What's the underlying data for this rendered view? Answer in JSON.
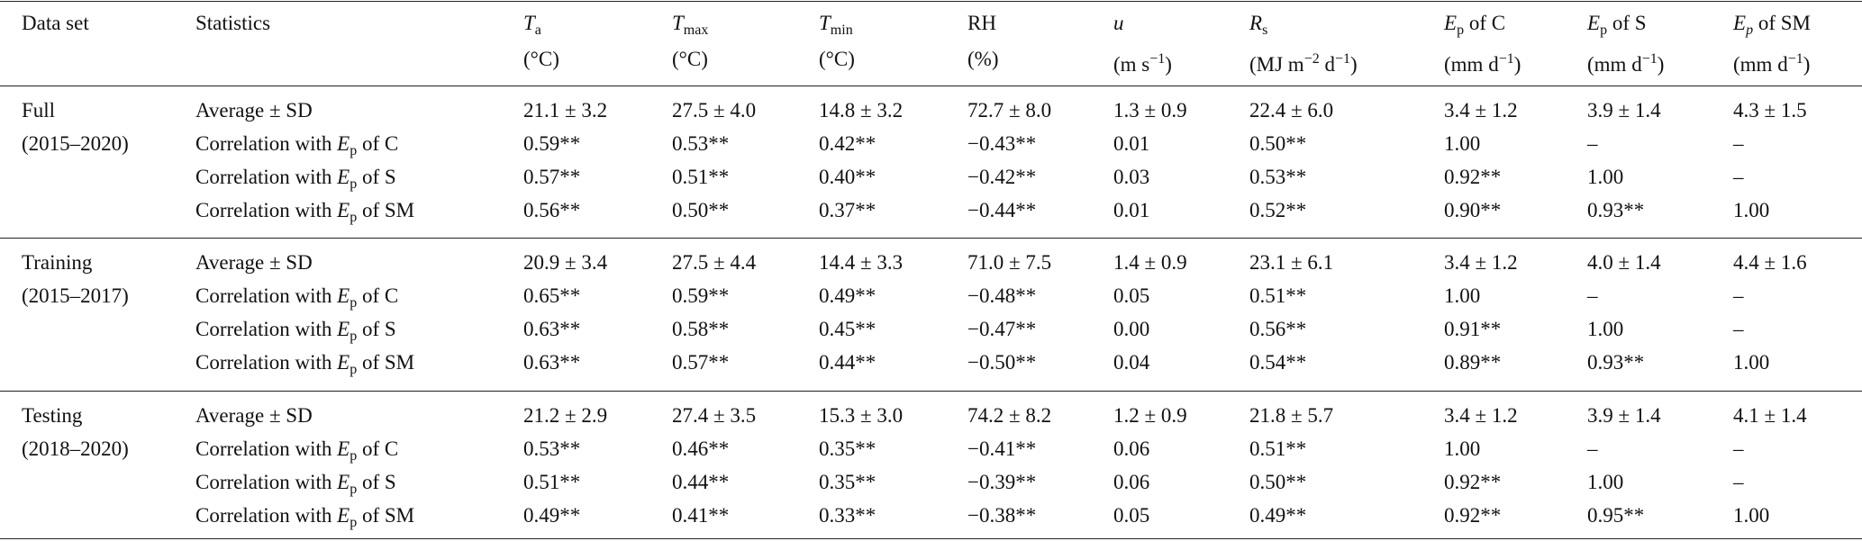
{
  "table": {
    "columns": [
      {
        "line1": [
          [
            "Data set"
          ]
        ]
      },
      {
        "line1": [
          [
            "Statistics"
          ]
        ]
      },
      {
        "line1": [
          [
            "T",
            "i"
          ],
          [
            "a",
            "sub"
          ]
        ],
        "line2": [
          [
            "(°C)"
          ]
        ]
      },
      {
        "line1": [
          [
            "T",
            "i"
          ],
          [
            "max",
            "sub"
          ]
        ],
        "line2": [
          [
            "(°C)"
          ]
        ]
      },
      {
        "line1": [
          [
            "T",
            "i"
          ],
          [
            "min",
            "sub"
          ]
        ],
        "line2": [
          [
            "(°C)"
          ]
        ]
      },
      {
        "line1": [
          [
            "RH"
          ]
        ],
        "line2": [
          [
            "(%)"
          ]
        ]
      },
      {
        "line1": [
          [
            "u",
            "i"
          ]
        ],
        "line2": [
          [
            "(m s"
          ],
          [
            "−1",
            "sup"
          ],
          [
            ")"
          ]
        ]
      },
      {
        "line1": [
          [
            "R",
            "i"
          ],
          [
            "s",
            "sub"
          ]
        ],
        "line2": [
          [
            "(MJ m"
          ],
          [
            "−2",
            "sup"
          ],
          [
            " d"
          ],
          [
            "−1",
            "sup"
          ],
          [
            ")"
          ]
        ]
      },
      {
        "line1": [
          [
            "E",
            "i"
          ],
          [
            "p",
            "sub"
          ],
          [
            " of C"
          ]
        ],
        "line2": [
          [
            "(mm d"
          ],
          [
            "−1",
            "sup"
          ],
          [
            ")"
          ]
        ]
      },
      {
        "line1": [
          [
            "E",
            "i"
          ],
          [
            "p",
            "sub"
          ],
          [
            " of S"
          ]
        ],
        "line2": [
          [
            "(mm d"
          ],
          [
            "−1",
            "sup"
          ],
          [
            ")"
          ]
        ]
      },
      {
        "line1": [
          [
            "E",
            "i"
          ],
          [
            "p",
            "isub"
          ],
          [
            " of SM"
          ]
        ],
        "line2": [
          [
            "(mm d"
          ],
          [
            "−1",
            "sup"
          ],
          [
            ")"
          ]
        ]
      }
    ],
    "groups": [
      {
        "name": [
          "Full",
          "(2015–2020)"
        ],
        "rows": [
          {
            "statistic": [
              [
                "Average ± SD"
              ]
            ],
            "cells": [
              "21.1 ± 3.2",
              "27.5 ± 4.0",
              "14.8 ± 3.2",
              "72.7 ± 8.0",
              "1.3 ± 0.9",
              "22.4 ± 6.0",
              "3.4 ± 1.2",
              "3.9 ± 1.4",
              "4.3 ± 1.5"
            ]
          },
          {
            "statistic": [
              [
                "Correlation with "
              ],
              [
                "E",
                "i"
              ],
              [
                "p",
                "sub"
              ],
              [
                " of C"
              ]
            ],
            "cells": [
              "0.59**",
              "0.53**",
              "0.42**",
              "−0.43**",
              "0.01",
              "0.50**",
              "1.00",
              "–",
              "–"
            ]
          },
          {
            "statistic": [
              [
                "Correlation with "
              ],
              [
                "E",
                "i"
              ],
              [
                "p",
                "sub"
              ],
              [
                " of S"
              ]
            ],
            "cells": [
              "0.57**",
              "0.51**",
              "0.40**",
              "−0.42**",
              "0.03",
              "0.53**",
              "0.92**",
              "1.00",
              "–"
            ]
          },
          {
            "statistic": [
              [
                "Correlation with "
              ],
              [
                "E",
                "i"
              ],
              [
                "p",
                "sub"
              ],
              [
                " of SM"
              ]
            ],
            "cells": [
              "0.56**",
              "0.50**",
              "0.37**",
              "−0.44**",
              "0.01",
              "0.52**",
              "0.90**",
              "0.93**",
              "1.00"
            ]
          }
        ]
      },
      {
        "name": [
          "Training",
          "(2015–2017)"
        ],
        "rows": [
          {
            "statistic": [
              [
                "Average ± SD"
              ]
            ],
            "cells": [
              "20.9 ± 3.4",
              "27.5 ± 4.4",
              "14.4 ± 3.3",
              "71.0 ± 7.5",
              "1.4 ± 0.9",
              "23.1 ± 6.1",
              "3.4 ± 1.2",
              "4.0 ± 1.4",
              "4.4 ± 1.6"
            ]
          },
          {
            "statistic": [
              [
                "Correlation with "
              ],
              [
                "E",
                "i"
              ],
              [
                "p",
                "sub"
              ],
              [
                " of C"
              ]
            ],
            "cells": [
              "0.65**",
              "0.59**",
              "0.49**",
              "−0.48**",
              "0.05",
              "0.51**",
              "1.00",
              "–",
              "–"
            ]
          },
          {
            "statistic": [
              [
                "Correlation with "
              ],
              [
                "E",
                "i"
              ],
              [
                "p",
                "sub"
              ],
              [
                " of S"
              ]
            ],
            "cells": [
              "0.63**",
              "0.58**",
              "0.45**",
              "−0.47**",
              "0.00",
              "0.56**",
              "0.91**",
              "1.00",
              "–"
            ]
          },
          {
            "statistic": [
              [
                "Correlation with "
              ],
              [
                "E",
                "i"
              ],
              [
                "p",
                "sub"
              ],
              [
                " of SM"
              ]
            ],
            "cells": [
              "0.63**",
              "0.57**",
              "0.44**",
              "−0.50**",
              "0.04",
              "0.54**",
              "0.89**",
              "0.93**",
              "1.00"
            ]
          }
        ]
      },
      {
        "name": [
          "Testing",
          "(2018–2020)"
        ],
        "rows": [
          {
            "statistic": [
              [
                "Average ± SD"
              ]
            ],
            "cells": [
              "21.2 ± 2.9",
              "27.4 ± 3.5",
              "15.3 ± 3.0",
              "74.2 ± 8.2",
              "1.2 ± 0.9",
              "21.8 ± 5.7",
              "3.4 ± 1.2",
              "3.9 ± 1.4",
              "4.1 ± 1.4"
            ]
          },
          {
            "statistic": [
              [
                "Correlation with "
              ],
              [
                "E",
                "i"
              ],
              [
                "p",
                "sub"
              ],
              [
                " of C"
              ]
            ],
            "cells": [
              "0.53**",
              "0.46**",
              "0.35**",
              "−0.41**",
              "0.06",
              "0.51**",
              "1.00",
              "–",
              "–"
            ]
          },
          {
            "statistic": [
              [
                "Correlation with "
              ],
              [
                "E",
                "i"
              ],
              [
                "p",
                "sub"
              ],
              [
                " of S"
              ]
            ],
            "cells": [
              "0.51**",
              "0.44**",
              "0.35**",
              "−0.39**",
              "0.06",
              "0.50**",
              "0.92**",
              "1.00",
              "–"
            ]
          },
          {
            "statistic": [
              [
                "Correlation with "
              ],
              [
                "E",
                "i"
              ],
              [
                "p",
                "sub"
              ],
              [
                " of SM"
              ]
            ],
            "cells": [
              "0.49**",
              "0.41**",
              "0.33**",
              "−0.38**",
              "0.05",
              "0.49**",
              "0.92**",
              "0.95**",
              "1.00"
            ]
          }
        ]
      }
    ]
  }
}
